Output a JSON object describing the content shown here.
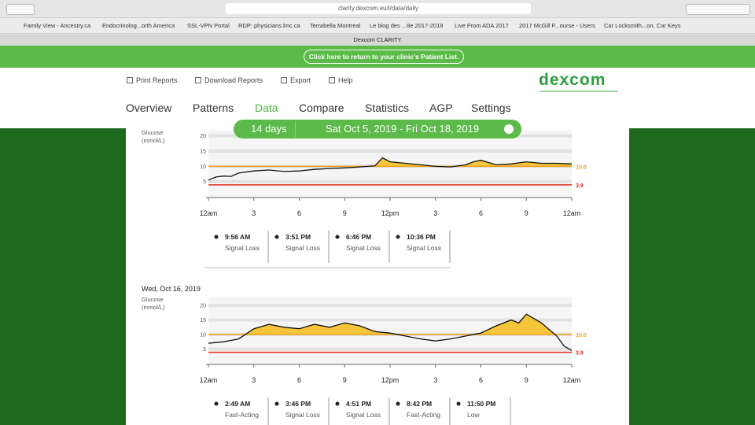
{
  "browser": {
    "url": "clarity.dexcom.eu/i/data/daily",
    "tab_title": "Dexcom CLARITY",
    "bookmarks": [
      "Family View - Ancestry.ca",
      "Endocrinolog...orth America",
      "SSL-VPN Portal",
      "RDP: physicians.lmc.ca",
      "Terrabella Montreal",
      "Le blog des ...8e 2017-2018",
      "Live From ADA 2017",
      "2017 McGill F...ourse - Users",
      "Car Locksmith...on, Car Keys"
    ]
  },
  "banner": {
    "link": "Click here to return to your clinic's Patient List."
  },
  "toolbar": {
    "items": [
      "Print Reports",
      "Download Reports",
      "Export",
      "Help"
    ],
    "logo": "dexcom"
  },
  "nav": {
    "items": [
      "Overview",
      "Patterns",
      "Data",
      "Compare",
      "Statistics",
      "AGP",
      "Settings"
    ],
    "active": 2
  },
  "date_bar": {
    "period": "14 days",
    "range": "Sat Oct 5, 2019 - Fri Oct 18, 2019"
  },
  "days": [
    {
      "y_label": [
        "Glucose",
        "(mmol/L)"
      ],
      "chart": {
        "type": "line",
        "xlim": [
          0,
          24
        ],
        "ylim": [
          0,
          22
        ],
        "xticks": [
          {
            "value": 0,
            "label": "12am"
          },
          3,
          6,
          9,
          {
            "value": 12,
            "label": "12pm"
          },
          {
            "value": 15,
            "label": "3"
          },
          {
            "value": 18,
            "label": "6"
          },
          {
            "value": 21,
            "label": "9"
          },
          {
            "value": 24,
            "label": "12am"
          }
        ],
        "yticks": [
          5,
          10,
          15,
          20
        ],
        "thresholds": [
          {
            "value": 10,
            "label": "10.0",
            "color": "#f0a020"
          },
          {
            "value": 3.9,
            "label": 3.9,
            "color": "#e02a1e"
          }
        ],
        "x": [
          0,
          0.5,
          1,
          1.5,
          2,
          3,
          4,
          5,
          6,
          7,
          8,
          9,
          10,
          11,
          11.5,
          12,
          13,
          14,
          15,
          16,
          17,
          17.5,
          18,
          19,
          20,
          21,
          22,
          23,
          24
        ],
        "values": [
          5.5,
          6.5,
          6.8,
          6.7,
          7.8,
          8.5,
          8.8,
          8.3,
          8.5,
          9,
          9.3,
          9.5,
          9.8,
          10.2,
          12.8,
          11.5,
          11,
          10.5,
          10,
          9.8,
          10.5,
          11.5,
          12,
          10.5,
          10.8,
          11.5,
          11,
          11,
          10.8
        ],
        "color": "#111111",
        "high_color": "#f6c63a"
      },
      "events": [
        {
          "time": "9:56 AM",
          "label": "Signal Loss"
        },
        {
          "time": "3:51 PM",
          "label": "Signal Loss"
        },
        {
          "time": "6:46 PM",
          "label": "Signal Loss"
        },
        {
          "time": "10:36 PM",
          "label": "Signal Loss"
        }
      ]
    },
    {
      "date": "Wed, Oct 16, 2019",
      "y_label": [
        "Glucose",
        "(mmol/L)"
      ],
      "chart": {
        "type": "line",
        "xlim": [
          0,
          24
        ],
        "ylim": [
          0,
          23
        ],
        "xticks": [
          {
            "value": 0,
            "label": "12am"
          },
          3,
          6,
          9,
          {
            "value": 12,
            "label": "12pm"
          },
          {
            "value": 15,
            "label": "3"
          },
          {
            "value": 18,
            "label": "6"
          },
          {
            "value": 21,
            "label": "9"
          },
          {
            "value": 24,
            "label": "12am"
          }
        ],
        "yticks": [
          5,
          10,
          15,
          20
        ],
        "thresholds": [
          {
            "value": 10,
            "label": "10.0",
            "color": "#f0a020"
          },
          {
            "value": 3.9,
            "label": 3.9,
            "color": "#e02a1e"
          }
        ],
        "x": [
          0,
          1,
          2,
          3,
          4,
          5,
          6,
          7,
          8,
          9,
          10,
          11,
          12,
          13,
          14,
          15,
          16,
          17,
          18,
          19,
          20,
          20.5,
          21,
          22,
          23,
          23.5,
          24
        ],
        "values": [
          7,
          7.5,
          8.5,
          12,
          13.5,
          12.5,
          12,
          13.5,
          12.5,
          14,
          13,
          11,
          10.5,
          9.5,
          8.5,
          7.8,
          8.5,
          9.5,
          10.5,
          13,
          15,
          14,
          17,
          14,
          9.5,
          6,
          4.5
        ],
        "color": "#111111",
        "high_color": "#f6c63a"
      },
      "events": [
        {
          "time": "2:49 AM",
          "label": "Fast-Acting"
        },
        {
          "time": "3:46 PM",
          "label": "Signal Loss"
        },
        {
          "time": "4:51 PM",
          "label": "Signal Loss"
        },
        {
          "time": "8:42 PM",
          "label": "Fast-Acting"
        },
        {
          "time": "11:50 PM",
          "label": "Low"
        }
      ]
    }
  ]
}
